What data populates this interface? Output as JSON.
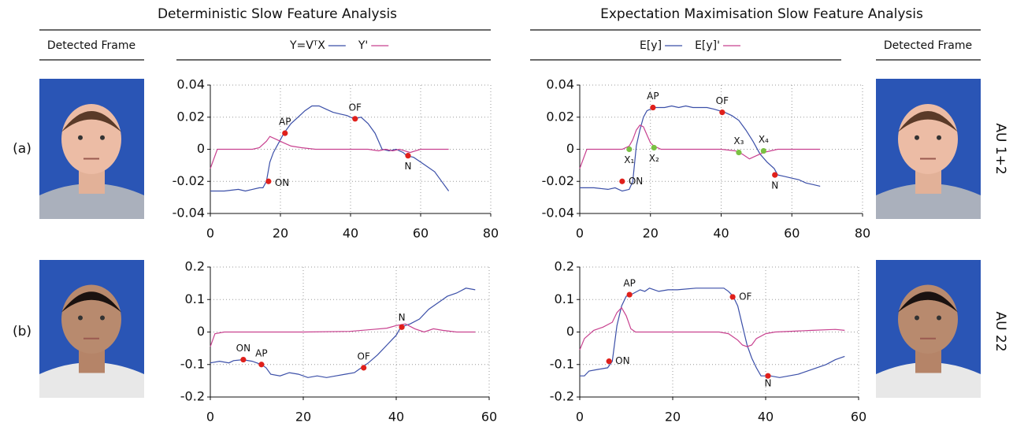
{
  "headers": {
    "left": "Deterministic Slow Feature Analysis",
    "right": "Expectation Maximisation Slow Feature Analysis"
  },
  "frame_labels": [
    "Detected Frame",
    "Detected Frame"
  ],
  "rows": [
    {
      "label": "(a)",
      "au": "AU 1+2"
    },
    {
      "label": "(b)",
      "au": "AU 22"
    }
  ],
  "chart_data": [
    {
      "type": "line",
      "xlim": [
        0,
        80
      ],
      "ylim": [
        -0.04,
        0.04
      ],
      "xticks": [
        0,
        20,
        40,
        60,
        80
      ],
      "yticks": [
        -0.04,
        -0.02,
        0,
        0.02,
        0.04
      ],
      "grid": true,
      "series": [
        {
          "name": "Y=VᵀX",
          "color": "#3b4fa8",
          "x": [
            0,
            4,
            8,
            10,
            12,
            14,
            15,
            16,
            17,
            18,
            20,
            21,
            23,
            25,
            27,
            29,
            31,
            33,
            35,
            37,
            39,
            41,
            43,
            45,
            47,
            49,
            51,
            53,
            55,
            56,
            58,
            60,
            62,
            64,
            66,
            68
          ],
          "values": [
            -0.026,
            -0.026,
            -0.025,
            -0.026,
            -0.025,
            -0.024,
            -0.024,
            -0.02,
            -0.008,
            -0.002,
            0.006,
            0.01,
            0.016,
            0.02,
            0.024,
            0.027,
            0.027,
            0.025,
            0.023,
            0.022,
            0.021,
            0.019,
            0.02,
            0.016,
            0.01,
            0.0,
            -0.001,
            0.0,
            -0.002,
            -0.004,
            -0.005,
            -0.008,
            -0.011,
            -0.014,
            -0.02,
            -0.026
          ]
        },
        {
          "name": "Y'",
          "color": "#c8418f",
          "x": [
            0,
            2,
            6,
            10,
            12,
            14,
            16,
            17,
            19,
            21,
            23,
            26,
            30,
            35,
            40,
            45,
            48,
            50,
            52,
            54,
            57,
            60,
            63,
            68
          ],
          "values": [
            -0.012,
            0.0,
            0.0,
            0.0,
            0.0,
            0.001,
            0.005,
            0.008,
            0.006,
            0.004,
            0.002,
            0.001,
            0.0,
            0.0,
            0.0,
            0.0,
            -0.001,
            0.0,
            -0.001,
            0.0,
            -0.002,
            0.0,
            0.0,
            0.0
          ]
        }
      ],
      "annotations": [
        {
          "label": "ON",
          "x": 16.6,
          "y": -0.02,
          "color": "#e0201b"
        },
        {
          "label": "AP",
          "x": 21.3,
          "y": 0.01,
          "color": "#e0201b"
        },
        {
          "label": "OF",
          "x": 41.3,
          "y": 0.019,
          "color": "#e0201b"
        },
        {
          "label": "N",
          "x": 56.4,
          "y": -0.004,
          "color": "#e0201b"
        }
      ]
    },
    {
      "type": "line",
      "xlim": [
        0,
        80
      ],
      "ylim": [
        -0.04,
        0.04
      ],
      "xticks": [
        0,
        20,
        40,
        60,
        80
      ],
      "yticks": [
        -0.04,
        -0.02,
        0,
        0.02,
        0.04
      ],
      "grid": true,
      "series": [
        {
          "name": "E[y]",
          "color": "#3b4fa8",
          "x": [
            0,
            4,
            8,
            10,
            12,
            14,
            15,
            16,
            17,
            18,
            19,
            21,
            24,
            26,
            28,
            30,
            32,
            34,
            36,
            38,
            41,
            43,
            45,
            47,
            49,
            51,
            53,
            55,
            56,
            58,
            60,
            62,
            64,
            66,
            68
          ],
          "values": [
            -0.024,
            -0.024,
            -0.025,
            -0.024,
            -0.026,
            -0.025,
            -0.02,
            0.002,
            0.012,
            0.02,
            0.024,
            0.026,
            0.026,
            0.027,
            0.026,
            0.027,
            0.026,
            0.026,
            0.026,
            0.025,
            0.023,
            0.021,
            0.018,
            0.012,
            0.005,
            -0.003,
            -0.008,
            -0.012,
            -0.016,
            -0.017,
            -0.018,
            -0.019,
            -0.021,
            -0.022,
            -0.023
          ]
        },
        {
          "name": "E[y]'",
          "color": "#c8418f",
          "x": [
            0,
            2,
            8,
            12,
            14,
            15,
            16,
            17,
            18,
            19,
            20,
            21,
            23,
            30,
            40,
            44,
            46,
            48,
            50,
            52,
            54,
            56,
            60,
            68
          ],
          "values": [
            -0.012,
            0.0,
            0.0,
            0.0,
            0.002,
            0.006,
            0.012,
            0.015,
            0.014,
            0.009,
            0.004,
            0.002,
            0.0,
            0.0,
            0.0,
            -0.001,
            -0.003,
            -0.006,
            -0.004,
            -0.002,
            -0.001,
            0.0,
            0.0,
            0.0
          ]
        }
      ],
      "annotations": [
        {
          "label": "ON",
          "x": 12,
          "y": -0.02,
          "color": "#e0201b"
        },
        {
          "label": "AP",
          "x": 20.7,
          "y": 0.026,
          "color": "#e0201b"
        },
        {
          "label": "OF",
          "x": 40.3,
          "y": 0.023,
          "color": "#e0201b"
        },
        {
          "label": "N",
          "x": 55.2,
          "y": -0.016,
          "color": "#e0201b"
        },
        {
          "label": "X₁",
          "x": 14,
          "y": 0.0,
          "color": "#7ac143"
        },
        {
          "label": "X₂",
          "x": 21,
          "y": 0.001,
          "color": "#7ac143"
        },
        {
          "label": "X₃",
          "x": 45,
          "y": -0.002,
          "color": "#7ac143"
        },
        {
          "label": "X₄",
          "x": 52,
          "y": -0.001,
          "color": "#7ac143"
        }
      ]
    },
    {
      "type": "line",
      "xlim": [
        0,
        60
      ],
      "ylim": [
        -0.2,
        0.2
      ],
      "xticks": [
        0,
        20,
        40,
        60
      ],
      "yticks": [
        -0.2,
        -0.1,
        0,
        0.1,
        0.2
      ],
      "grid": true,
      "series": [
        {
          "color": "#3b4fa8",
          "x": [
            0,
            2,
            4,
            5,
            7,
            9,
            11,
            12,
            13,
            15,
            17,
            19,
            21,
            23,
            25,
            27,
            29,
            31,
            32,
            34,
            36,
            38,
            40,
            41,
            43,
            45,
            47,
            49,
            51,
            53,
            55,
            57
          ],
          "values": [
            -0.095,
            -0.09,
            -0.095,
            -0.088,
            -0.085,
            -0.09,
            -0.1,
            -0.11,
            -0.13,
            -0.135,
            -0.125,
            -0.13,
            -0.14,
            -0.135,
            -0.14,
            -0.135,
            -0.13,
            -0.125,
            -0.115,
            -0.095,
            -0.07,
            -0.04,
            -0.01,
            0.015,
            0.025,
            0.04,
            0.07,
            0.09,
            0.11,
            0.12,
            0.135,
            0.13
          ]
        },
        {
          "color": "#c8418f",
          "x": [
            0,
            1,
            3,
            10,
            20,
            30,
            35,
            38,
            40,
            42,
            44,
            46,
            48,
            50,
            53,
            57
          ],
          "values": [
            -0.045,
            -0.005,
            0.0,
            0.0,
            0.0,
            0.002,
            0.008,
            0.012,
            0.02,
            0.025,
            0.01,
            0.0,
            0.01,
            0.005,
            0.0,
            0.0
          ]
        }
      ],
      "annotations": [
        {
          "label": "ON",
          "x": 7.1,
          "y": -0.085,
          "color": "#e0201b"
        },
        {
          "label": "AP",
          "x": 11,
          "y": -0.1,
          "color": "#e0201b"
        },
        {
          "label": "OF",
          "x": 33,
          "y": -0.11,
          "color": "#e0201b"
        },
        {
          "label": "N",
          "x": 41.2,
          "y": 0.015,
          "color": "#e0201b"
        }
      ]
    },
    {
      "type": "line",
      "xlim": [
        0,
        60
      ],
      "ylim": [
        -0.2,
        0.2
      ],
      "xticks": [
        0,
        20,
        40,
        60
      ],
      "yticks": [
        -0.2,
        -0.1,
        0,
        0.1,
        0.2
      ],
      "grid": true,
      "series": [
        {
          "color": "#3b4fa8",
          "x": [
            0,
            1,
            2,
            4,
            6,
            7,
            8,
            9,
            10,
            11,
            13,
            14,
            15,
            17,
            19,
            21,
            25,
            29,
            31,
            32,
            33,
            34,
            35,
            36,
            37,
            38,
            39,
            41,
            43,
            45,
            47,
            50,
            53,
            55,
            57
          ],
          "values": [
            -0.135,
            -0.135,
            -0.12,
            -0.115,
            -0.11,
            -0.09,
            0.02,
            0.08,
            0.11,
            0.115,
            0.13,
            0.125,
            0.135,
            0.125,
            0.13,
            0.13,
            0.135,
            0.135,
            0.135,
            0.125,
            0.11,
            0.08,
            0.02,
            -0.04,
            -0.08,
            -0.11,
            -0.135,
            -0.135,
            -0.14,
            -0.135,
            -0.13,
            -0.115,
            -0.1,
            -0.085,
            -0.075
          ]
        },
        {
          "color": "#c8418f",
          "x": [
            0,
            1,
            3,
            5,
            7,
            8,
            9,
            10,
            11,
            12,
            20,
            30,
            32,
            34,
            35,
            36,
            37,
            38,
            40,
            42,
            50,
            55,
            57
          ],
          "values": [
            -0.055,
            -0.02,
            0.005,
            0.015,
            0.03,
            0.06,
            0.075,
            0.05,
            0.01,
            0.0,
            0.0,
            0.0,
            -0.005,
            -0.025,
            -0.04,
            -0.045,
            -0.04,
            -0.02,
            -0.005,
            0.0,
            0.005,
            0.008,
            0.005
          ]
        }
      ],
      "annotations": [
        {
          "label": "ON",
          "x": 6.3,
          "y": -0.09,
          "color": "#e0201b"
        },
        {
          "label": "AP",
          "x": 10.7,
          "y": 0.115,
          "color": "#e0201b"
        },
        {
          "label": "OF",
          "x": 32.9,
          "y": 0.108,
          "color": "#e0201b"
        },
        {
          "label": "N",
          "x": 40.5,
          "y": -0.135,
          "color": "#e0201b"
        }
      ]
    }
  ]
}
